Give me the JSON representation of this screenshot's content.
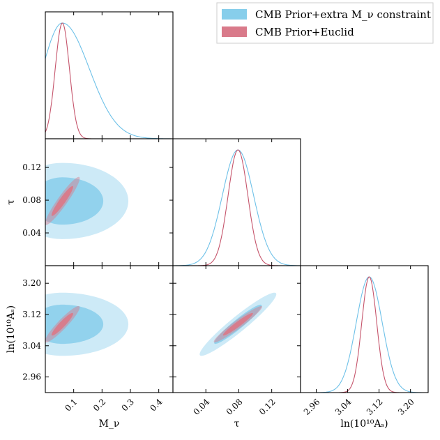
{
  "chart_data": {
    "type": "triangle-corner-plot",
    "parameters": [
      {
        "key": "mnu",
        "label": "M_ν",
        "range": [
          0.0,
          0.45
        ],
        "ticks": [
          0.1,
          0.2,
          0.3,
          0.4
        ],
        "tick_labels": [
          "0.1",
          "0.2",
          "0.3",
          "0.4"
        ]
      },
      {
        "key": "tau",
        "label": "τ",
        "range": [
          0.0,
          0.155
        ],
        "ticks": [
          0.04,
          0.08,
          0.12
        ],
        "tick_labels": [
          "0.04",
          "0.08",
          "0.12"
        ]
      },
      {
        "key": "lnAs",
        "label": "ln(10¹⁰Aₛ)",
        "range": [
          2.92,
          3.245
        ],
        "ticks": [
          2.96,
          3.04,
          3.12,
          3.2
        ],
        "tick_labels": [
          "2.96",
          "3.04",
          "3.12",
          "3.20"
        ]
      }
    ],
    "series": [
      {
        "name": "CMB Prior+extra M_ν constraint",
        "color": "#87ceeb",
        "line_color": "#6ec1e8",
        "mean": {
          "mnu": 0.06,
          "tau": 0.079,
          "lnAs": 3.095
        },
        "sigma": {
          "mnu_lo": 0.07,
          "mnu_hi": 0.095,
          "tau": 0.019,
          "lnAs": 0.033
        },
        "correlation_tau_lnAs": 0.95,
        "correlation_mnu_tau": 0.0,
        "correlation_mnu_lnAs": 0.0
      },
      {
        "name": "CMB Prior+Euclid",
        "color": "#d97a8a",
        "line_color": "#c5546b",
        "mean": {
          "mnu": 0.06,
          "tau": 0.079,
          "lnAs": 3.095
        },
        "sigma": {
          "mnu_lo": 0.025,
          "mnu_hi": 0.025,
          "tau": 0.012,
          "lnAs": 0.019
        },
        "correlation_tau_lnAs": 0.96,
        "correlation_mnu_tau": 0.94,
        "correlation_mnu_lnAs": 0.93
      }
    ],
    "legend_placement": "top-right",
    "grid": false
  }
}
